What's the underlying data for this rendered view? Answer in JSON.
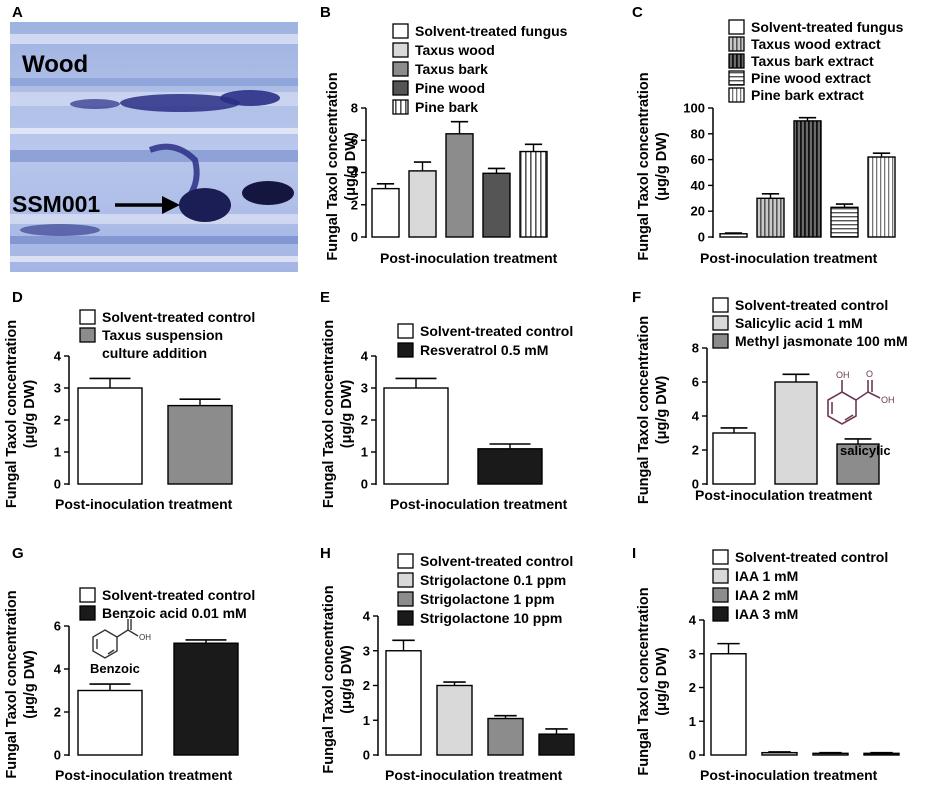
{
  "panel_labels": [
    "A",
    "B",
    "C",
    "D",
    "E",
    "F",
    "G",
    "H",
    "I"
  ],
  "micrograph": {
    "wood_label": "Wood",
    "strain_label": "SSM001"
  },
  "colors": {
    "white": "#ffffff",
    "light_gray": "#d9d9d9",
    "mid_gray": "#8c8c8c",
    "dark_gray": "#555555",
    "black": "#1a1a1a",
    "ink": "#000000"
  },
  "chart_data": [
    {
      "panel": "B",
      "type": "bar",
      "ylabel_line1": "Fungal Taxol concentration",
      "ylabel_line2": "(μg/g DW)",
      "xlabel": "Post-inoculation treatment",
      "ylim": [
        0,
        8
      ],
      "yticks": [
        0,
        2,
        4,
        6,
        8
      ],
      "series": [
        {
          "name": "Solvent-treated fungus",
          "value": 3.0,
          "error": 0.3,
          "fill": "white"
        },
        {
          "name": "Taxus wood",
          "value": 4.1,
          "error": 0.55,
          "fill": "light"
        },
        {
          "name": "Taxus bark",
          "value": 6.4,
          "error": 0.75,
          "fill": "mid"
        },
        {
          "name": "Pine wood",
          "value": 3.95,
          "error": 0.3,
          "fill": "dark"
        },
        {
          "name": "Pine bark",
          "value": 5.3,
          "error": 0.45,
          "fill": "vstripe"
        }
      ]
    },
    {
      "panel": "C",
      "type": "bar",
      "ylabel_line1": "Fungal Taxol concentration",
      "ylabel_line2": "(μg/g DW)",
      "xlabel": "Post-inoculation treatment",
      "ylim": [
        0,
        100
      ],
      "yticks": [
        0,
        20,
        40,
        60,
        80,
        100
      ],
      "series": [
        {
          "name": "Solvent-treated fungus",
          "value": 2.5,
          "error": 0.6,
          "fill": "white"
        },
        {
          "name": "Taxus wood extract",
          "value": 30,
          "error": 3.5,
          "fill": "vstripe_gray"
        },
        {
          "name": "Taxus bark extract",
          "value": 90,
          "error": 2.5,
          "fill": "vstripe_dark"
        },
        {
          "name": "Pine wood extract",
          "value": 23,
          "error": 2.5,
          "fill": "hstripe"
        },
        {
          "name": "Pine bark extract",
          "value": 62,
          "error": 3,
          "fill": "vstripe_light"
        }
      ]
    },
    {
      "panel": "D",
      "type": "bar",
      "ylabel_line1": "Fungal Taxol concentration",
      "ylabel_line2": "(μg/g DW)",
      "xlabel": "Post-inoculation treatment",
      "ylim": [
        0,
        4
      ],
      "yticks": [
        0,
        1,
        2,
        3,
        4
      ],
      "series": [
        {
          "name": "Solvent-treated control",
          "value": 3.0,
          "error": 0.3,
          "fill": "white"
        },
        {
          "name": "Taxus suspension",
          "name_line2": "culture addition",
          "value": 2.45,
          "error": 0.2,
          "fill": "mid"
        }
      ]
    },
    {
      "panel": "E",
      "type": "bar",
      "ylabel_line1": "Fungal Taxol concentration",
      "ylabel_line2": "(μg/g DW)",
      "xlabel": "Post-inoculation treatment",
      "ylim": [
        0,
        4
      ],
      "yticks": [
        0,
        1,
        2,
        3,
        4
      ],
      "series": [
        {
          "name": "Solvent-treated control",
          "value": 3.0,
          "error": 0.3,
          "fill": "white"
        },
        {
          "name": "Resveratrol 0.5 mM",
          "value": 1.1,
          "error": 0.15,
          "fill": "black"
        }
      ]
    },
    {
      "panel": "F",
      "type": "bar",
      "ylabel_line1": "Fungal Taxol concentration",
      "ylabel_line2": "(μg/g DW)",
      "xlabel": "Post-inoculation treatment",
      "ylim": [
        0,
        8
      ],
      "yticks": [
        0,
        2,
        4,
        6,
        8
      ],
      "annotation": "salicylic",
      "series": [
        {
          "name": "Solvent-treated control",
          "value": 3.0,
          "error": 0.3,
          "fill": "white"
        },
        {
          "name": "Salicylic acid 1 mM",
          "value": 6.0,
          "error": 0.45,
          "fill": "light"
        },
        {
          "name": "Methyl jasmonate 100 mM",
          "value": 2.35,
          "error": 0.3,
          "fill": "mid"
        }
      ]
    },
    {
      "panel": "G",
      "type": "bar",
      "ylabel_line1": "Fungal Taxol concentration",
      "ylabel_line2": "(μg/g DW)",
      "xlabel": "Post-inoculation treatment",
      "ylim": [
        0,
        6
      ],
      "yticks": [
        0,
        2,
        4,
        6
      ],
      "annotation": "Benzoic",
      "series": [
        {
          "name": "Solvent-treated control",
          "value": 3.0,
          "error": 0.3,
          "fill": "white"
        },
        {
          "name": "Benzoic acid 0.01 mM",
          "value": 5.2,
          "error": 0.15,
          "fill": "black"
        }
      ]
    },
    {
      "panel": "H",
      "type": "bar",
      "ylabel_line1": "Fungal Taxol concentration",
      "ylabel_line2": "(μg/g DW)",
      "xlabel": "Post-inoculation treatment",
      "ylim": [
        0,
        4
      ],
      "yticks": [
        0,
        1,
        2,
        3,
        4
      ],
      "series": [
        {
          "name": "Solvent-treated control",
          "value": 3.0,
          "error": 0.3,
          "fill": "white"
        },
        {
          "name": "Strigolactone 0.1 ppm",
          "value": 2.0,
          "error": 0.1,
          "fill": "light"
        },
        {
          "name": "Strigolactone 1 ppm",
          "value": 1.05,
          "error": 0.08,
          "fill": "mid"
        },
        {
          "name": "Strigolactone 10 ppm",
          "value": 0.6,
          "error": 0.15,
          "fill": "black"
        }
      ]
    },
    {
      "panel": "I",
      "type": "bar",
      "ylabel_line1": "Fungal Taxol concentration",
      "ylabel_line2": "(μg/g DW)",
      "xlabel": "Post-inoculation treatment",
      "ylim": [
        0,
        4
      ],
      "yticks": [
        0,
        1,
        2,
        3,
        4
      ],
      "series": [
        {
          "name": "Solvent-treated control",
          "value": 3.0,
          "error": 0.3,
          "fill": "white"
        },
        {
          "name": "IAA 1 mM",
          "value": 0.07,
          "error": 0.02,
          "fill": "light"
        },
        {
          "name": "IAA 2 mM",
          "value": 0.05,
          "error": 0.02,
          "fill": "mid"
        },
        {
          "name": "IAA 3 mM",
          "value": 0.05,
          "error": 0.02,
          "fill": "black"
        }
      ]
    }
  ]
}
